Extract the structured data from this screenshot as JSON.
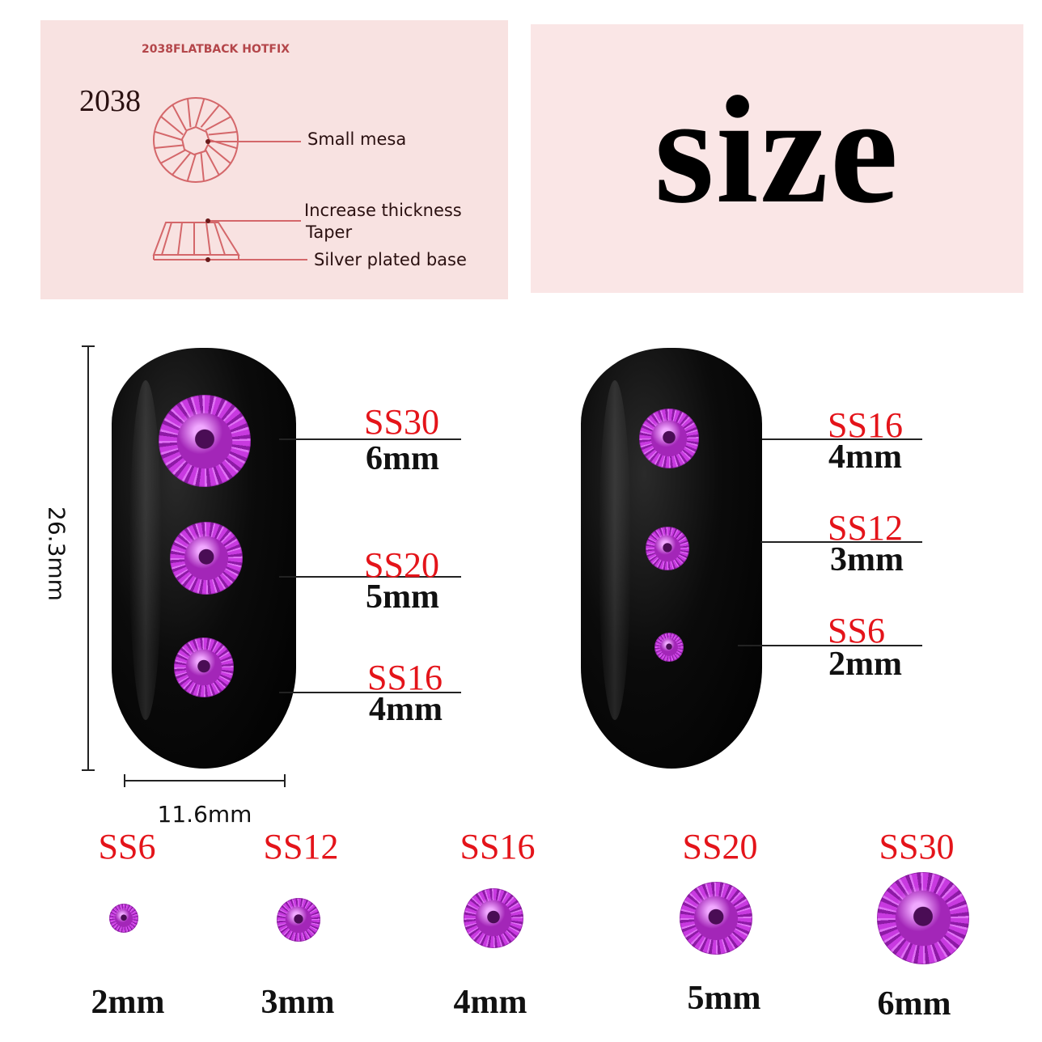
{
  "diagram": {
    "header": "2038FLATBACK HOTFIX",
    "model": "2038",
    "labels": [
      "Small mesa",
      "Increase thickness",
      "Taper",
      "Silver plated base"
    ],
    "line_color": "#d4676a"
  },
  "headline": "size",
  "dimensions": {
    "height": "26.3mm",
    "width": "11.6mm"
  },
  "left_nail": [
    {
      "size": "SS30",
      "mm": "6mm"
    },
    {
      "size": "SS20",
      "mm": "5mm"
    },
    {
      "size": "SS16",
      "mm": "4mm"
    }
  ],
  "right_nail": [
    {
      "size": "SS16",
      "mm": "4mm"
    },
    {
      "size": "SS12",
      "mm": "3mm"
    },
    {
      "size": "SS6",
      "mm": "2mm"
    }
  ],
  "scale_row": [
    {
      "size": "SS6",
      "mm": "2mm"
    },
    {
      "size": "SS12",
      "mm": "3mm"
    },
    {
      "size": "SS16",
      "mm": "4mm"
    },
    {
      "size": "SS20",
      "mm": "5mm"
    },
    {
      "size": "SS30",
      "mm": "6mm"
    }
  ],
  "colors": {
    "label_red": "#e4141a",
    "gem": "#c83ae0",
    "panel": "#f8e2e1"
  }
}
